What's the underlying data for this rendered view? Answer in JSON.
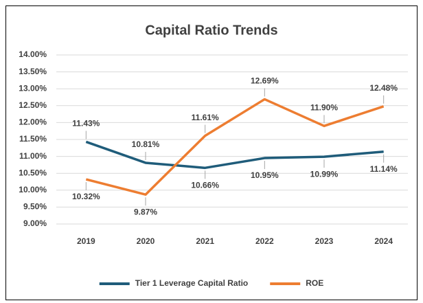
{
  "chart_data": {
    "type": "line",
    "title": "Capital Ratio Trends",
    "categories": [
      "2019",
      "2020",
      "2021",
      "2022",
      "2023",
      "2024"
    ],
    "series": [
      {
        "name": "Tier 1 Leverage Capital Ratio",
        "color": "#1f5c7a",
        "values": [
          11.43,
          10.81,
          10.66,
          10.95,
          10.99,
          11.14
        ],
        "value_labels": [
          "11.43%",
          "10.81%",
          "10.66%",
          "10.95%",
          "10.99%",
          "11.14%"
        ]
      },
      {
        "name": "ROE",
        "color": "#ed7d31",
        "values": [
          10.32,
          9.87,
          11.61,
          12.69,
          11.9,
          12.48
        ],
        "value_labels": [
          "10.32%",
          "9.87%",
          "11.61%",
          "12.69%",
          "11.90%",
          "12.48%"
        ]
      }
    ],
    "ylim": [
      9,
      14
    ],
    "yticks": [
      {
        "value": 9,
        "label": "9.00%"
      },
      {
        "value": 9.5,
        "label": "9.50%"
      },
      {
        "value": 10,
        "label": "10.00%"
      },
      {
        "value": 10.5,
        "label": "10.50%"
      },
      {
        "value": 11,
        "label": "11.00%"
      },
      {
        "value": 11.5,
        "label": "11.50%"
      },
      {
        "value": 12,
        "label": "12.00%"
      },
      {
        "value": 12.5,
        "label": "12.50%"
      },
      {
        "value": 13,
        "label": "13.00%"
      },
      {
        "value": 13.5,
        "label": "13.50%"
      },
      {
        "value": 14,
        "label": "14.00%"
      }
    ],
    "grid": true,
    "legend": "bottom"
  }
}
